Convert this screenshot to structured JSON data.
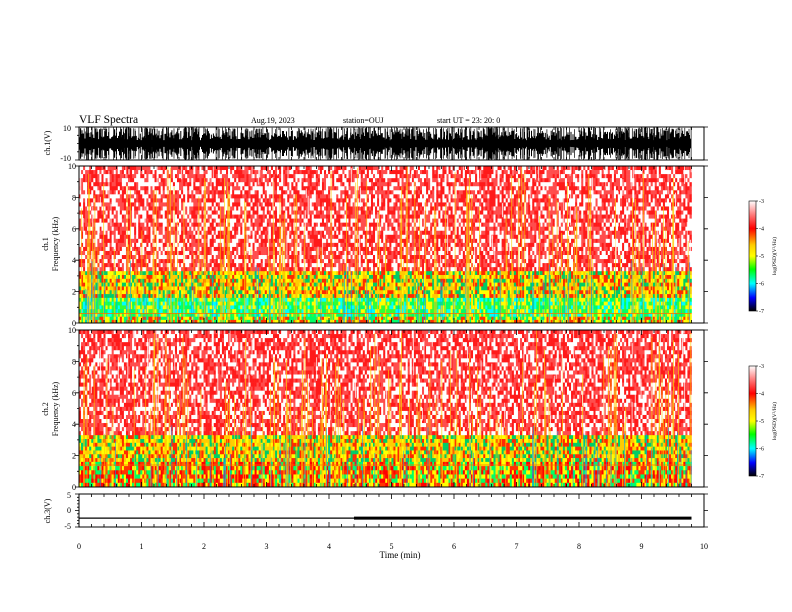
{
  "header": {
    "title": "VLF Spectra",
    "date": "Aug.19, 2023",
    "station": "station=OUJ",
    "start": "start  UT  =   23: 20: 0"
  },
  "chart_data": [
    {
      "type": "line",
      "panel": "ch1-waveform",
      "ylabel": "ch.1(V)",
      "ylim": [
        -10,
        10
      ],
      "ytick_labels": [
        "10",
        "-10"
      ],
      "xlim": [
        0,
        10
      ],
      "xlabel": ""
    },
    {
      "type": "heatmap",
      "panel": "ch1-spectrogram",
      "ylabel": "ch.1\nFrequency (kHz)",
      "ylabel_lines": [
        "ch.1",
        "Frequency  (kHz)"
      ],
      "ylim": [
        0,
        10
      ],
      "ytick_labels": [
        "0",
        "2",
        "4",
        "6",
        "8",
        "10"
      ],
      "xlim": [
        0,
        10
      ],
      "colorbar": {
        "label": "log(PSD)(V²/Hz)",
        "range": [
          -7,
          -3
        ],
        "tick_labels": [
          "-3",
          "-4",
          "-5",
          "-6",
          "-7"
        ]
      },
      "bands": [
        {
          "freq_khz": [
            3.3,
            10
          ],
          "level": "high",
          "colors": [
            "#ff1a1a",
            "#ff4d4d",
            "#ffffff"
          ]
        },
        {
          "freq_khz": [
            1.6,
            3.3
          ],
          "level": "mid-high",
          "colors": [
            "#ff2a00",
            "#ffcc00",
            "#ffff00",
            "#00cc66"
          ]
        },
        {
          "freq_khz": [
            0.4,
            1.6
          ],
          "level": "mid",
          "colors": [
            "#00ff66",
            "#33ff33",
            "#00ffff",
            "#ffff00"
          ]
        },
        {
          "freq_khz": [
            0,
            0.4
          ],
          "level": "mixed",
          "colors": [
            "#ff3300",
            "#ffff00",
            "#00ff66"
          ]
        }
      ]
    },
    {
      "type": "heatmap",
      "panel": "ch2-spectrogram",
      "ylabel_lines": [
        "ch.2",
        "Frequency  (kHz)"
      ],
      "ylim": [
        0,
        10
      ],
      "ytick_labels": [
        "0",
        "2",
        "4",
        "6",
        "8",
        "10"
      ],
      "xlim": [
        0,
        10
      ],
      "colorbar": {
        "label": "log(PSD)(V²/Hz)",
        "range": [
          -7,
          -3
        ],
        "tick_labels": [
          "-3",
          "-4",
          "-5",
          "-6",
          "-7"
        ]
      },
      "bands": [
        {
          "freq_khz": [
            3.3,
            10
          ],
          "level": "high",
          "colors": [
            "#ff1a1a",
            "#ff4d4d",
            "#ffffff"
          ]
        },
        {
          "freq_khz": [
            1.6,
            3.3
          ],
          "level": "mid-high",
          "colors": [
            "#ff2a00",
            "#ffcc00",
            "#ffff00",
            "#00cc66"
          ]
        },
        {
          "freq_khz": [
            0,
            1.6
          ],
          "level": "mixed",
          "colors": [
            "#ff3300",
            "#ffff00",
            "#00ff66",
            "#ff0000"
          ]
        }
      ]
    },
    {
      "type": "line",
      "panel": "ch3-waveform",
      "ylabel": "ch.3(V)",
      "ylim": [
        -5,
        5
      ],
      "ytick_labels": [
        "5",
        "0",
        "-5"
      ],
      "xlim": [
        0,
        10
      ],
      "xlabel": "Time  (min)",
      "xtick_labels": [
        "0",
        "1",
        "2",
        "3",
        "4",
        "5",
        "6",
        "7",
        "8",
        "9",
        "10"
      ],
      "segments": [
        {
          "x": [
            0,
            4.4
          ],
          "y": -2.3,
          "weight": "thin"
        },
        {
          "x": [
            4.4,
            9.8
          ],
          "y": -2.3,
          "weight": "thick"
        }
      ]
    }
  ]
}
